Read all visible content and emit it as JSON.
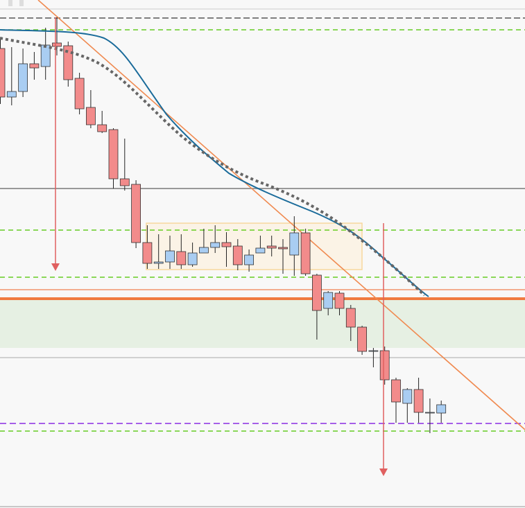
{
  "chart_data": {
    "type": "candlestick",
    "ylim": [
      0,
      733
    ],
    "open": [
      663,
      593,
      601,
      641,
      637,
      671,
      667,
      620,
      578,
      553,
      546,
      475,
      467,
      383,
      353,
      355,
      370,
      351,
      368,
      376,
      383,
      378,
      351,
      368,
      378,
      376,
      365,
      397,
      336,
      288,
      310,
      288,
      261,
      227,
      227,
      185,
      151,
      171,
      138,
      137
    ],
    "close": [
      593,
      601,
      641,
      635,
      668,
      666,
      618,
      576,
      553,
      543,
      475,
      465,
      383,
      353,
      355,
      371,
      351,
      368,
      376,
      383,
      377,
      351,
      365,
      375,
      375,
      374,
      397,
      338,
      285,
      311,
      288,
      261,
      226,
      227,
      185,
      153,
      171,
      138,
      138,
      149
    ],
    "high": [
      678,
      665,
      663,
      658,
      693,
      708,
      673,
      628,
      603,
      573,
      548,
      533,
      473,
      408,
      395,
      393,
      395,
      383,
      403,
      408,
      398,
      388,
      373,
      393,
      393,
      388,
      421,
      403,
      338,
      313,
      313,
      293,
      263,
      231,
      233,
      188,
      173,
      188,
      158,
      155
    ],
    "low": [
      583,
      581,
      593,
      618,
      618,
      653,
      608,
      568,
      548,
      541,
      461,
      458,
      375,
      345,
      345,
      345,
      345,
      348,
      368,
      368,
      348,
      343,
      341,
      368,
      363,
      338,
      335,
      335,
      243,
      278,
      278,
      241,
      221,
      203,
      178,
      123,
      123,
      123,
      108,
      123
    ],
    "up_color": "#a9cdf2",
    "down_color": "#f28b8b"
  }
}
